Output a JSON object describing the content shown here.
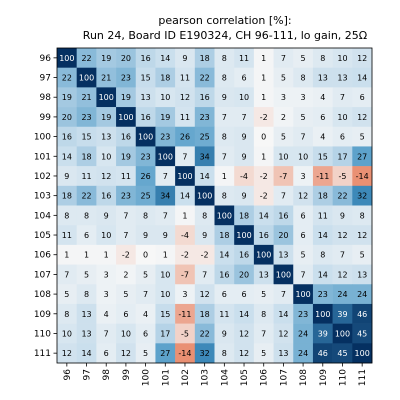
{
  "chart_data": {
    "type": "heatmap",
    "title_line1": "pearson correlation [%]:",
    "title_line2": "Run 24, Board ID E190324, CH 96-111, lo gain, 25Ω",
    "title": "pearson correlation [%]: Run 24, Board ID E190324, CH 96-111, lo gain, 25Ω",
    "x_categories": [
      "96",
      "97",
      "98",
      "99",
      "100",
      "101",
      "102",
      "103",
      "104",
      "105",
      "106",
      "107",
      "108",
      "109",
      "110",
      "111"
    ],
    "y_categories": [
      "96",
      "97",
      "98",
      "99",
      "100",
      "101",
      "102",
      "103",
      "104",
      "105",
      "106",
      "107",
      "108",
      "109",
      "110",
      "111"
    ],
    "values": [
      [
        100,
        22,
        19,
        20,
        16,
        14,
        9,
        18,
        8,
        11,
        1,
        7,
        5,
        8,
        10,
        12
      ],
      [
        22,
        100,
        21,
        23,
        15,
        18,
        11,
        22,
        8,
        6,
        1,
        5,
        8,
        13,
        13,
        14
      ],
      [
        19,
        21,
        100,
        19,
        13,
        10,
        12,
        16,
        9,
        10,
        1,
        3,
        3,
        4,
        7,
        6
      ],
      [
        20,
        23,
        19,
        100,
        16,
        19,
        11,
        23,
        7,
        7,
        -2,
        2,
        5,
        6,
        10,
        12
      ],
      [
        16,
        15,
        13,
        16,
        100,
        23,
        26,
        25,
        8,
        9,
        0,
        5,
        7,
        4,
        6,
        5
      ],
      [
        14,
        18,
        10,
        19,
        23,
        100,
        7,
        34,
        7,
        9,
        1,
        10,
        10,
        15,
        17,
        27
      ],
      [
        9,
        11,
        12,
        11,
        26,
        7,
        100,
        14,
        1,
        -4,
        -2,
        -7,
        3,
        -11,
        -5,
        -14
      ],
      [
        18,
        22,
        16,
        23,
        25,
        34,
        14,
        100,
        8,
        9,
        -2,
        7,
        12,
        18,
        22,
        32
      ],
      [
        8,
        8,
        9,
        7,
        8,
        7,
        1,
        8,
        100,
        18,
        14,
        16,
        6,
        11,
        9,
        8
      ],
      [
        11,
        6,
        10,
        7,
        9,
        9,
        -4,
        9,
        18,
        100,
        16,
        20,
        6,
        14,
        12,
        12
      ],
      [
        1,
        1,
        1,
        -2,
        0,
        1,
        -2,
        -2,
        14,
        16,
        100,
        13,
        5,
        8,
        7,
        5
      ],
      [
        7,
        5,
        3,
        2,
        5,
        10,
        -7,
        7,
        16,
        20,
        13,
        100,
        7,
        14,
        12,
        13
      ],
      [
        5,
        8,
        3,
        5,
        7,
        10,
        3,
        12,
        6,
        6,
        5,
        7,
        100,
        23,
        24,
        24
      ],
      [
        8,
        13,
        4,
        6,
        4,
        15,
        -11,
        18,
        11,
        14,
        8,
        14,
        23,
        100,
        39,
        46
      ],
      [
        10,
        13,
        7,
        10,
        6,
        17,
        -5,
        22,
        9,
        12,
        7,
        12,
        24,
        39,
        100,
        45
      ],
      [
        12,
        14,
        6,
        12,
        5,
        27,
        -14,
        32,
        8,
        12,
        5,
        13,
        24,
        46,
        45,
        100
      ]
    ],
    "color_scale": {
      "negative_max": "#e8896a",
      "zero": "#f7f7f7",
      "light_blue": "#c7ddec",
      "mid_blue": "#4393c3",
      "dark_blue": "#053061"
    }
  }
}
